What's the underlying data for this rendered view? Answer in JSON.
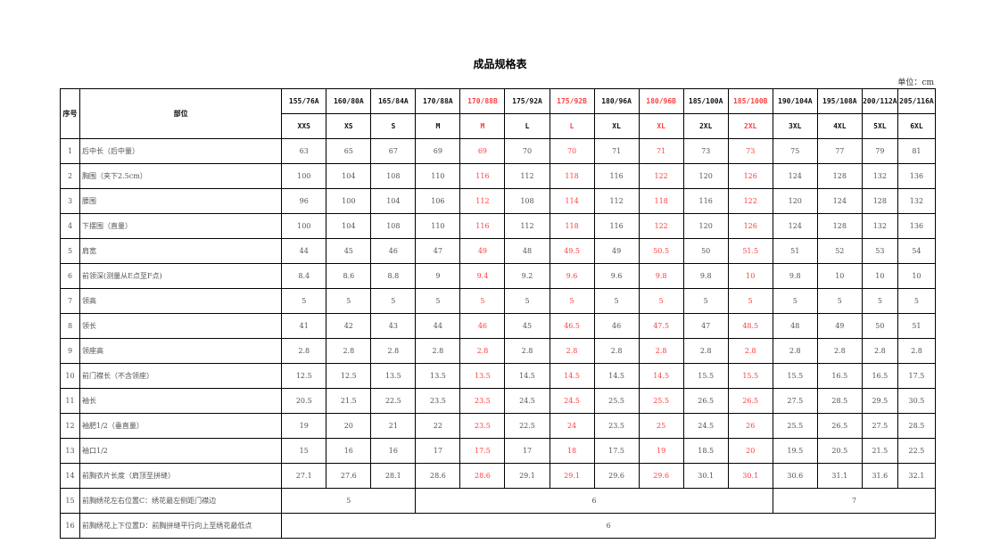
{
  "title": "成品规格表",
  "unit": "单位：cm",
  "colors": {
    "highlight": "#ff4040",
    "text": "#555555"
  },
  "header": {
    "index_label": "序号",
    "part_label": "部位",
    "sizes": [
      "155/76A",
      "160/80A",
      "165/84A",
      "170/88A",
      "170/88B",
      "175/92A",
      "175/92B",
      "180/96A",
      "180/96B",
      "185/100A",
      "185/100B",
      "190/104A",
      "195/108A",
      "200/112A",
      "205/116A"
    ],
    "codes": [
      "XXS",
      "XS",
      "S",
      "M",
      "M",
      "L",
      "L",
      "XL",
      "XL",
      "2XL",
      "2XL",
      "3XL",
      "4XL",
      "5XL",
      "6XL"
    ],
    "highlight_columns": [
      4,
      6,
      8,
      10
    ]
  },
  "rows": [
    {
      "no": "1",
      "part": "后中长（后中量）",
      "values": [
        "63",
        "65",
        "67",
        "69",
        "69",
        "70",
        "70",
        "71",
        "71",
        "73",
        "73",
        "75",
        "77",
        "79",
        "81"
      ]
    },
    {
      "no": "2",
      "part": "胸围（夹下2.5cm）",
      "values": [
        "100",
        "104",
        "108",
        "110",
        "116",
        "112",
        "118",
        "116",
        "122",
        "120",
        "126",
        "124",
        "128",
        "132",
        "136"
      ]
    },
    {
      "no": "3",
      "part": "腰围",
      "values": [
        "96",
        "100",
        "104",
        "106",
        "112",
        "108",
        "114",
        "112",
        "118",
        "116",
        "122",
        "120",
        "124",
        "128",
        "132"
      ]
    },
    {
      "no": "4",
      "part": "下摆围（直量）",
      "values": [
        "100",
        "104",
        "108",
        "110",
        "116",
        "112",
        "118",
        "116",
        "122",
        "120",
        "126",
        "124",
        "128",
        "132",
        "136"
      ]
    },
    {
      "no": "5",
      "part": "肩宽",
      "values": [
        "44",
        "45",
        "46",
        "47",
        "49",
        "48",
        "49.5",
        "49",
        "50.5",
        "50",
        "51.5",
        "51",
        "52",
        "53",
        "54"
      ]
    },
    {
      "no": "6",
      "part": "前领深(测量从E点至F点)",
      "values": [
        "8.4",
        "8.6",
        "8.8",
        "9",
        "9.4",
        "9.2",
        "9.6",
        "9.6",
        "9.8",
        "9.8",
        "10",
        "9.8",
        "10",
        "10",
        "10"
      ]
    },
    {
      "no": "7",
      "part": "领高",
      "values": [
        "5",
        "5",
        "5",
        "5",
        "5",
        "5",
        "5",
        "5",
        "5",
        "5",
        "5",
        "5",
        "5",
        "5",
        "5"
      ]
    },
    {
      "no": "8",
      "part": "领长",
      "values": [
        "41",
        "42",
        "43",
        "44",
        "46",
        "45",
        "46.5",
        "46",
        "47.5",
        "47",
        "48.5",
        "48",
        "49",
        "50",
        "51"
      ]
    },
    {
      "no": "9",
      "part": "领座高",
      "values": [
        "2.8",
        "2.8",
        "2.8",
        "2.8",
        "2.8",
        "2.8",
        "2.8",
        "2.8",
        "2.8",
        "2.8",
        "2.8",
        "2.8",
        "2.8",
        "2.8",
        "2.8"
      ]
    },
    {
      "no": "10",
      "part": "前门襟长（不含领座）",
      "values": [
        "12.5",
        "12.5",
        "13.5",
        "13.5",
        "13.5",
        "14.5",
        "14.5",
        "14.5",
        "14.5",
        "15.5",
        "15.5",
        "15.5",
        "16.5",
        "16.5",
        "17.5"
      ]
    },
    {
      "no": "11",
      "part": "袖长",
      "values": [
        "20.5",
        "21.5",
        "22.5",
        "23.5",
        "23.5",
        "24.5",
        "24.5",
        "25.5",
        "25.5",
        "26.5",
        "26.5",
        "27.5",
        "28.5",
        "29.5",
        "30.5"
      ]
    },
    {
      "no": "12",
      "part": "袖肥1/2（垂直量）",
      "values": [
        "19",
        "20",
        "21",
        "22",
        "23.5",
        "22.5",
        "24",
        "23.5",
        "25",
        "24.5",
        "26",
        "25.5",
        "26.5",
        "27.5",
        "28.5"
      ]
    },
    {
      "no": "13",
      "part": "袖口1/2",
      "values": [
        "15",
        "16",
        "16",
        "17",
        "17.5",
        "17",
        "18",
        "17.5",
        "19",
        "18.5",
        "20",
        "19.5",
        "20.5",
        "21.5",
        "22.5"
      ]
    },
    {
      "no": "14",
      "part": "前胸衣片长度（肩顶至拼缝）",
      "values": [
        "27.1",
        "27.6",
        "28.1",
        "28.6",
        "28.6",
        "29.1",
        "29.1",
        "29.6",
        "29.6",
        "30.1",
        "30.1",
        "30.6",
        "31.1",
        "31.6",
        "32.1"
      ]
    }
  ],
  "merged_rows": [
    {
      "no": "15",
      "part": "前胸绣花左右位置C：绣花最左侧距门襟边",
      "spans": [
        {
          "value": "5",
          "cols": 3
        },
        {
          "value": "6",
          "cols": 8
        },
        {
          "value": "7",
          "cols": 4
        }
      ]
    },
    {
      "no": "16",
      "part": "前胸绣花上下位置D：前胸拼缝平行向上至绣花最低点",
      "spans": [
        {
          "value": "6",
          "cols": 15
        }
      ]
    }
  ]
}
